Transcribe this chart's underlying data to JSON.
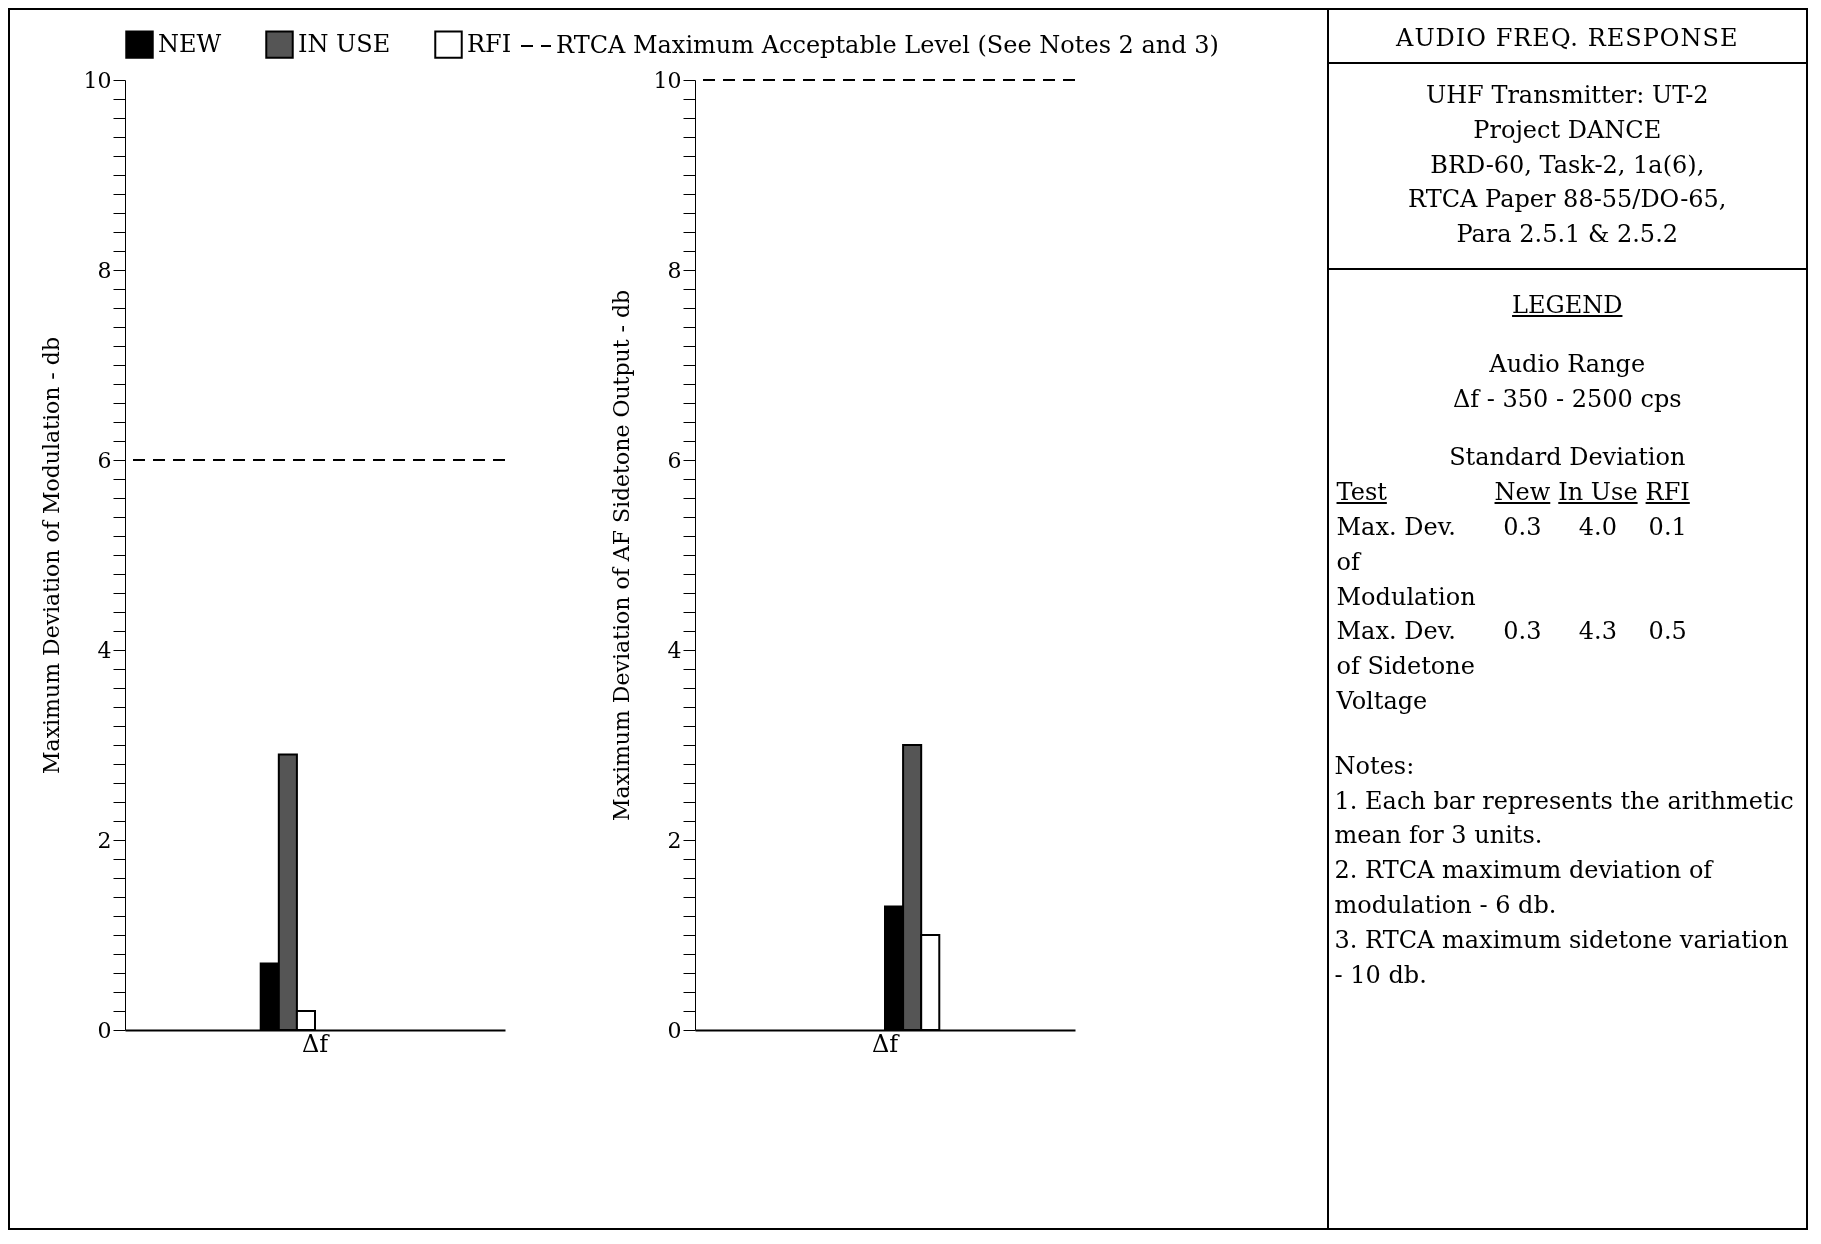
{
  "chart_data": [
    {
      "type": "bar",
      "categories": [
        "Δf"
      ],
      "ylabel": "Maximum Deviation of Modulation - db",
      "ylim": [
        0,
        10
      ],
      "yticks": [
        0,
        {
          "value": 0.2,
          "label": null
        },
        {
          "value": 0.4,
          "label": null
        },
        {
          "value": 0.6,
          "label": null
        },
        {
          "value": 0.8,
          "label": null
        },
        {
          "value": 1,
          "label": null
        },
        {
          "value": 1.2,
          "label": null
        },
        {
          "value": 1.4,
          "label": null
        },
        {
          "value": 1.6,
          "label": null
        },
        {
          "value": 1.8,
          "label": null
        },
        2,
        {
          "value": 2.2,
          "label": null
        },
        {
          "value": 2.4,
          "label": null
        },
        {
          "value": 2.6,
          "label": null
        },
        {
          "value": 2.8,
          "label": null
        },
        {
          "value": 3,
          "label": null
        },
        {
          "value": 3.2,
          "label": null
        },
        {
          "value": 3.4,
          "label": null
        },
        {
          "value": 3.6,
          "label": null
        },
        {
          "value": 3.8,
          "label": null
        },
        4,
        {
          "value": 4.2,
          "label": null
        },
        {
          "value": 4.4,
          "label": null
        },
        {
          "value": 4.6,
          "label": null
        },
        {
          "value": 4.8,
          "label": null
        },
        {
          "value": 5,
          "label": null
        },
        {
          "value": 5.2,
          "label": null
        },
        {
          "value": 5.4,
          "label": null
        },
        {
          "value": 5.6,
          "label": null
        },
        {
          "value": 5.8,
          "label": null
        },
        6,
        {
          "value": 6.2,
          "label": null
        },
        {
          "value": 6.4,
          "label": null
        },
        {
          "value": 6.6,
          "label": null
        },
        {
          "value": 6.8,
          "label": null
        },
        {
          "value": 7,
          "label": null
        },
        {
          "value": 7.2,
          "label": null
        },
        {
          "value": 7.4,
          "label": null
        },
        {
          "value": 7.6,
          "label": null
        },
        {
          "value": 7.8,
          "label": null
        },
        8,
        {
          "value": 8.2,
          "label": null
        },
        {
          "value": 8.4,
          "label": null
        },
        {
          "value": 8.6,
          "label": null
        },
        {
          "value": 8.8,
          "label": null
        },
        {
          "value": 9,
          "label": null
        },
        {
          "value": 9.2,
          "label": null
        },
        {
          "value": 9.4,
          "label": null
        },
        {
          "value": 9.6,
          "label": null
        },
        {
          "value": 9.8,
          "label": null
        },
        10
      ],
      "series": [
        {
          "name": "NEW",
          "color": "#000000",
          "values": [
            0.7
          ]
        },
        {
          "name": "IN USE",
          "color": "#555555",
          "values": [
            2.9
          ]
        },
        {
          "name": "RFI",
          "color": "#ffffff",
          "values": [
            0.2
          ]
        }
      ],
      "ref_lines": [
        {
          "axis": "y",
          "value": 6,
          "label": "RTCA Maximum Acceptable Level (See Notes 2 and 3)",
          "line_style": "dashed",
          "color": "#000000"
        }
      ],
      "legend": "top",
      "grid": false
    },
    {
      "type": "bar",
      "categories": [
        "Δf"
      ],
      "ylabel": "Maximum Deviation of AF Sidetone Output - db",
      "ylim": [
        0,
        10
      ],
      "yticks": [
        0,
        {
          "value": 0.2,
          "label": null
        },
        {
          "value": 0.4,
          "label": null
        },
        {
          "value": 0.6,
          "label": null
        },
        {
          "value": 0.8,
          "label": null
        },
        {
          "value": 1,
          "label": null
        },
        {
          "value": 1.2,
          "label": null
        },
        {
          "value": 1.4,
          "label": null
        },
        {
          "value": 1.6,
          "label": null
        },
        {
          "value": 1.8,
          "label": null
        },
        2,
        {
          "value": 2.2,
          "label": null
        },
        {
          "value": 2.4,
          "label": null
        },
        {
          "value": 2.6,
          "label": null
        },
        {
          "value": 2.8,
          "label": null
        },
        {
          "value": 3,
          "label": null
        },
        {
          "value": 3.2,
          "label": null
        },
        {
          "value": 3.4,
          "label": null
        },
        {
          "value": 3.6,
          "label": null
        },
        {
          "value": 3.8,
          "label": null
        },
        4,
        {
          "value": 4.2,
          "label": null
        },
        {
          "value": 4.4,
          "label": null
        },
        {
          "value": 4.6,
          "label": null
        },
        {
          "value": 4.8,
          "label": null
        },
        {
          "value": 5,
          "label": null
        },
        {
          "value": 5.2,
          "label": null
        },
        {
          "value": 5.4,
          "label": null
        },
        {
          "value": 5.6,
          "label": null
        },
        {
          "value": 5.8,
          "label": null
        },
        6,
        {
          "value": 6.2,
          "label": null
        },
        {
          "value": 6.4,
          "label": null
        },
        {
          "value": 6.6,
          "label": null
        },
        {
          "value": 6.8,
          "label": null
        },
        {
          "value": 7,
          "label": null
        },
        {
          "value": 7.2,
          "label": null
        },
        {
          "value": 7.4,
          "label": null
        },
        {
          "value": 7.6,
          "label": null
        },
        {
          "value": 7.8,
          "label": null
        },
        8,
        {
          "value": 8.2,
          "label": null
        },
        {
          "value": 8.4,
          "label": null
        },
        {
          "value": 8.6,
          "label": null
        },
        {
          "value": 8.8,
          "label": null
        },
        {
          "value": 9,
          "label": null
        },
        {
          "value": 9.2,
          "label": null
        },
        {
          "value": 9.4,
          "label": null
        },
        {
          "value": 9.6,
          "label": null
        },
        {
          "value": 9.8,
          "label": null
        },
        10
      ],
      "series": [
        {
          "color": "#000000",
          "values": [
            1.3
          ]
        },
        {
          "color": "#555555",
          "values": [
            3.0
          ]
        },
        {
          "color": "#ffffff",
          "values": [
            1.0
          ]
        }
      ],
      "ref_lines": [
        {
          "axis": "y",
          "value": 10,
          "line_style": "dashed",
          "color": "#000000"
        }
      ],
      "grid": false
    },
    {
      "type": "other",
      "title": "AUDIO FREQ. RESPONSE",
      "subtitle": "UHF Transmitter: UT-2\nProject DANCE\nBRD-60, Task-2, 1a(6),\nRTCA Paper 88-55/DO-65,\nPara 2.5.1 & 2.5.2",
      "annotations": [
        "LEGEND",
        "Audio Range",
        "Δf - 350 - 2500 cps",
        "Standard Deviation",
        "Test",
        "New",
        "In Use",
        "RFI",
        "Max. Dev. of Modulation",
        "0.3",
        "4.0",
        "0.1",
        "Max. Dev. of Sidetone Voltage",
        "0.3",
        "4.3",
        "0.5",
        "Notes:",
        "1. Each bar represents the arithmetic mean for 3 units.",
        "2. RTCA maximum deviation of modulation - 6 db.",
        "3. RTCA maximum sidetone variation - 10 db."
      ]
    }
  ]
}
